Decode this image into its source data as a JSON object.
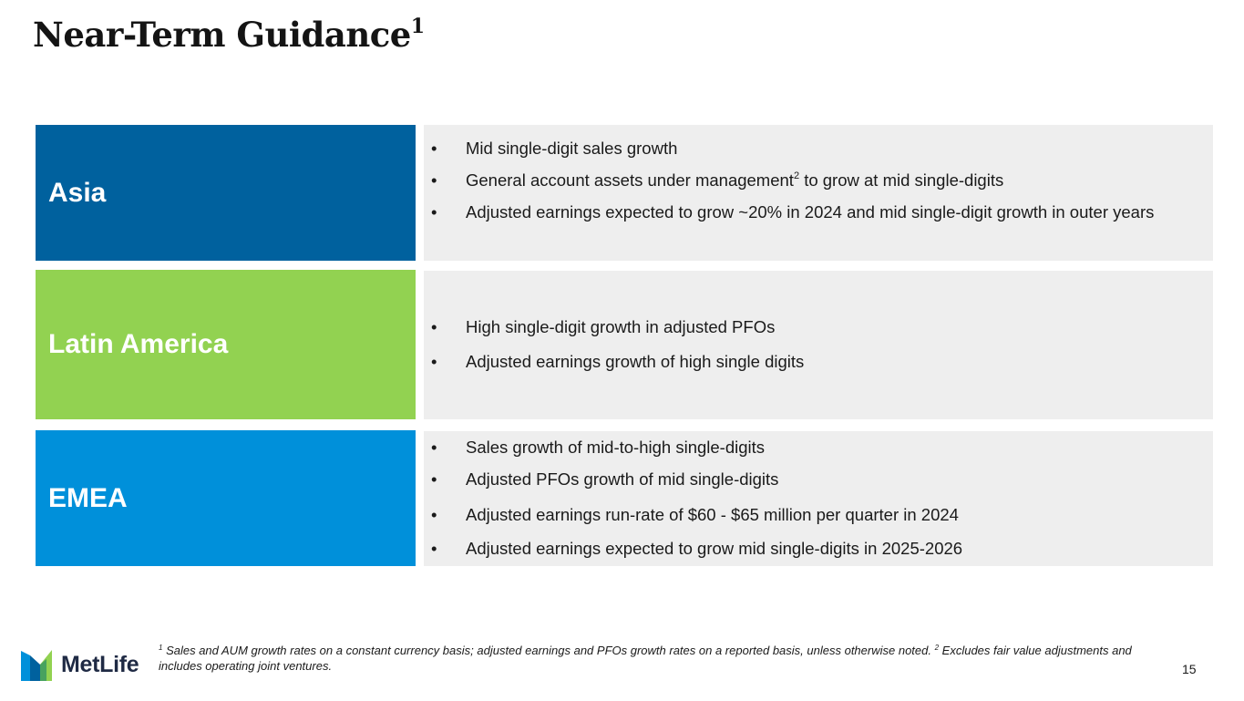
{
  "title": {
    "text": "Near-Term Guidance",
    "sup": "1"
  },
  "colors": {
    "asia": "#00619e",
    "latin_america": "#92d251",
    "emea": "#0090da",
    "panel_bg": "#eeeeee"
  },
  "regions": [
    {
      "name": "Asia",
      "bullets": [
        {
          "text": "Mid single-digit sales growth"
        },
        {
          "pre": "General account assets under management",
          "sup": "2",
          "post": " to grow at mid single-digits"
        },
        {
          "text": "Adjusted earnings expected to grow ~20% in 2024 and mid single-digit growth in outer years"
        }
      ]
    },
    {
      "name": "Latin America",
      "bullets": [
        {
          "text": "High single-digit growth in adjusted PFOs"
        },
        {
          "text": "Adjusted earnings growth of high single digits"
        }
      ]
    },
    {
      "name": "EMEA",
      "bullets": [
        {
          "text": "Sales growth of mid-to-high single-digits"
        },
        {
          "text": "Adjusted PFOs growth of mid single-digits"
        },
        {
          "text": "Adjusted earnings run-rate of $60 - $65 million per quarter in 2024"
        },
        {
          "text": "Adjusted earnings expected to grow mid single-digits in 2025-2026"
        }
      ]
    }
  ],
  "bullet_char": "•",
  "footnote": {
    "sup1": "1",
    "text1": " Sales and AUM growth rates on a constant currency basis; adjusted earnings and PFOs growth rates on a reported basis, unless otherwise noted. ",
    "sup2": "2",
    "text2": " Excludes fair value adjustments and includes operating joint ventures."
  },
  "logo": {
    "text": "MetLife",
    "icon": "metlife-logo-icon"
  },
  "page_number": "15"
}
